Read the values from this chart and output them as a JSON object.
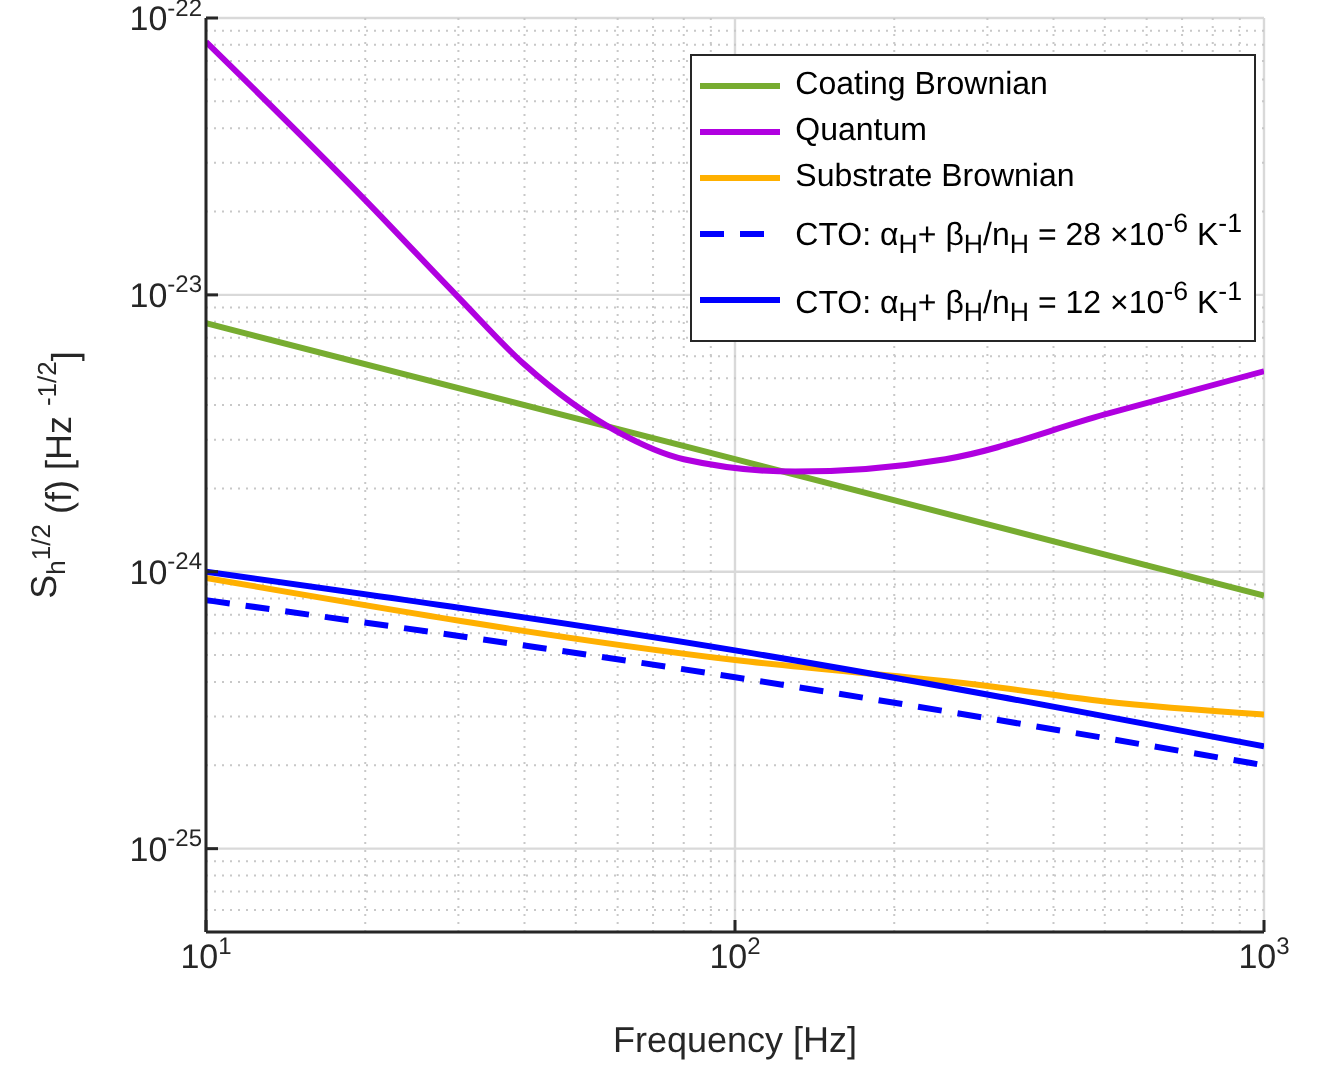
{
  "chart_data": {
    "type": "line",
    "xlabel": "Frequency [Hz]",
    "ylabel": "S$_{h}$$^{1/2}$ (f) [Hz $^{-1/2}$]",
    "log": "xy",
    "grid": true,
    "legend": "top right",
    "marker": "none",
    "xlim": [
      10,
      1000
    ],
    "xticks": [
      {
        "value": 10,
        "label": "10$^{1}$"
      },
      {
        "value": 100,
        "label": "10$^{2}$"
      },
      {
        "value": 1000,
        "label": "10$^{3}$"
      }
    ],
    "ylim": [
      5e-26,
      1e-22
    ],
    "yticks": [
      {
        "value": 1e-25,
        "label": "10$^{-25}$"
      },
      {
        "value": 1e-24,
        "label": "10$^{-24}$"
      },
      {
        "value": 1e-23,
        "label": "10$^{-23}$"
      },
      {
        "value": 1e-22,
        "label": "10$^{-22}$"
      }
    ],
    "series": [
      {
        "name": "Coating Brownian",
        "color": "#77ac30",
        "line_style": "solid",
        "x": [
          10,
          100,
          1000
        ],
        "values": [
          7.9e-24,
          2.55e-24,
          8.2e-25
        ]
      },
      {
        "name": "Quantum",
        "color": "#b000e0",
        "line_style": "solid",
        "x": [
          10,
          20,
          30,
          40,
          60,
          80,
          130,
          250,
          500,
          1000
        ],
        "values": [
          8.2e-23,
          2.2e-23,
          9.8e-24,
          5.6e-24,
          3.2e-24,
          2.55e-24,
          2.3e-24,
          2.55e-24,
          3.7e-24,
          5.3e-24
        ]
      },
      {
        "name": "Substrate Brownian",
        "color": "#ffb000",
        "line_style": "solid",
        "x": [
          10,
          100,
          300,
          500,
          1000
        ],
        "values": [
          9.5e-25,
          4.8e-25,
          3.87e-25,
          3.4e-25,
          3.05e-25
        ]
      },
      {
        "name": "CTO: α$_{H}$+ β$_{H}$/n$_{H}$ = 28 ×10$^{-6}$ K$^{-1}$",
        "color": "#0000ff",
        "line_style": "dashed",
        "x": [
          10,
          100,
          1000
        ],
        "values": [
          7.9e-25,
          4.16e-25,
          2e-25
        ]
      },
      {
        "name": "CTO: α$_{H}$+ β$_{H}$/n$_{H}$ = 12 ×10$^{-6}$ K$^{-1}$",
        "color": "#0000ff",
        "line_style": "solid",
        "x": [
          10,
          100,
          1000
        ],
        "values": [
          1e-24,
          5.2e-25,
          2.34e-25
        ]
      }
    ]
  }
}
